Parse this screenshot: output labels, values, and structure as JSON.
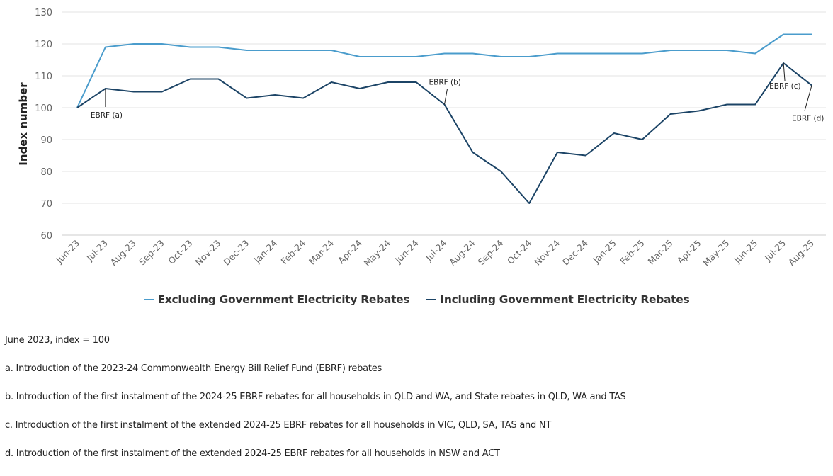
{
  "chart_data": {
    "type": "line",
    "title": "",
    "xlabel": "",
    "ylabel": "Index number",
    "ylim": [
      60,
      130
    ],
    "yticks": [
      60,
      70,
      80,
      90,
      100,
      110,
      120,
      130
    ],
    "grid": true,
    "legend_position": "bottom-center",
    "categories": [
      "Jun-23",
      "Jul-23",
      "Aug-23",
      "Sep-23",
      "Oct-23",
      "Nov-23",
      "Dec-23",
      "Jan-24",
      "Feb-24",
      "Mar-24",
      "Apr-24",
      "May-24",
      "Jun-24",
      "Jul-24",
      "Aug-24",
      "Sep-24",
      "Oct-24",
      "Nov-24",
      "Dec-24",
      "Jan-25",
      "Feb-25",
      "Mar-25",
      "Apr-25",
      "May-25",
      "Jun-25",
      "Jul-25",
      "Aug-25"
    ],
    "series": [
      {
        "name": "Excluding Government Electricity Rebates",
        "color": "#4a9ccc",
        "values": [
          100,
          119,
          120,
          120,
          119,
          119,
          118,
          118,
          118,
          118,
          116,
          116,
          116,
          117,
          117,
          116,
          116,
          117,
          117,
          117,
          117,
          118,
          118,
          118,
          117,
          123,
          123
        ]
      },
      {
        "name": "Including Government Electricity Rebates",
        "color": "#1c4466",
        "values": [
          100,
          106,
          105,
          105,
          109,
          109,
          103,
          104,
          103,
          108,
          106,
          108,
          108,
          101,
          86,
          80,
          70,
          86,
          85,
          92,
          90,
          98,
          99,
          101,
          101,
          114,
          107
        ]
      }
    ],
    "annotations": [
      {
        "label": "EBRF (a)",
        "category": "Jul-23",
        "series": 1
      },
      {
        "label": "EBRF (b)",
        "category": "Jul-24",
        "series": 1
      },
      {
        "label": "EBRF (c)",
        "category": "Jul-25",
        "series": 1
      },
      {
        "label": "EBRF (d)",
        "category": "Aug-25",
        "series": 1
      }
    ]
  },
  "notes": {
    "base": "June 2023, index = 100",
    "a": "a. Introduction of the 2023-24 Commonwealth Energy Bill Relief Fund (EBRF) rebates",
    "b": "b. Introduction of the first instalment of the 2024-25 EBRF rebates for all households in QLD and WA, and State rebates in QLD, WA and TAS",
    "c": "c. Introduction of the first instalment of the extended 2024-25 EBRF rebates for all households in VIC, QLD, SA, TAS and NT",
    "d": "d. Introduction of the first instalment of the extended 2024-25 EBRF rebates for all households in NSW and ACT"
  }
}
